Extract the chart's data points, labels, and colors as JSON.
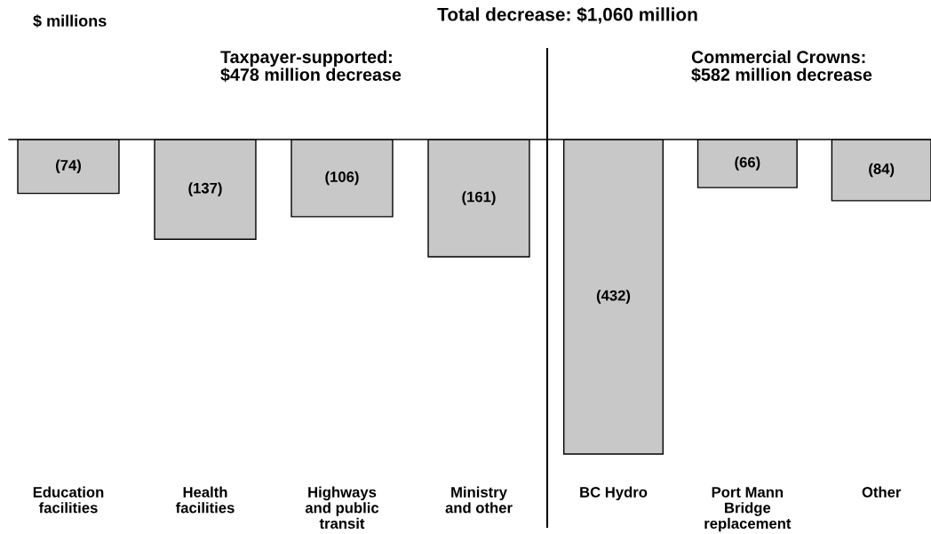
{
  "chart_data": [
    {
      "type": "bar",
      "title": "Taxpayer-supported:\n$478 million decrease",
      "categories": [
        "Education\nfacilities",
        "Health\nfacilities",
        "Highways\nand public\ntransit",
        "Ministry\nand other"
      ],
      "values": [
        -74,
        -137,
        -106,
        -161
      ],
      "color": "#c8c8c8",
      "value_labels": [
        "(74)",
        "(137)",
        "(106)",
        "(161)"
      ],
      "tick_labels": "x",
      "annotations": [
        "$ millions",
        "Total decrease: $1,060 million"
      ]
    },
    {
      "type": "bar",
      "title": "Commercial Crowns:\n$582 million decrease",
      "categories": [
        "BC Hydro",
        "Port Mann\nBridge\nreplacement",
        "Other"
      ],
      "values": [
        -432,
        -66,
        -84
      ],
      "color": "#c8c8c8",
      "value_labels": [
        "(432)",
        "(66)",
        "(84)"
      ],
      "tick_labels": "x"
    }
  ]
}
